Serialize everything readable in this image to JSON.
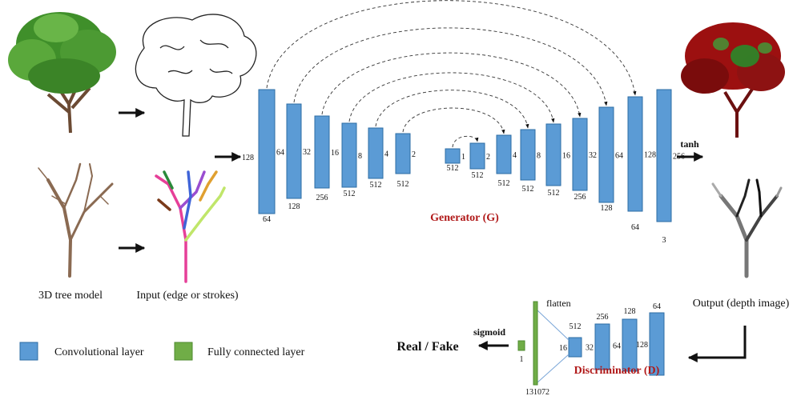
{
  "labels": {
    "tree_model": "3D tree model",
    "input": "Input (edge or strokes)",
    "output": "Output (depth image)",
    "generator": "Generator (G)",
    "discriminator": "Discriminator (D)",
    "tanh": "tanh",
    "sigmoid": "sigmoid",
    "real_fake": "Real / Fake",
    "flatten": "flatten"
  },
  "legend": {
    "conv": "Convolutional layer",
    "fc": "Fully connected layer"
  },
  "colors": {
    "conv_fill": "#5b9bd5",
    "conv_stroke": "#2e6da4",
    "fc_fill": "#70ad47",
    "fc_stroke": "#4e8a2f",
    "title_red": "#b01818",
    "foliage_green": "#3f8f2a",
    "bark": "#6b4a33",
    "output_red": "#9c1010"
  },
  "generator": {
    "input_size": "128",
    "layers": [
      {
        "side": "64",
        "channels": "64"
      },
      {
        "side": "32",
        "channels": "128"
      },
      {
        "side": "16",
        "channels": "256"
      },
      {
        "side": "8",
        "channels": "512"
      },
      {
        "side": "4",
        "channels": "512"
      },
      {
        "side": "2",
        "channels": "512"
      },
      {
        "side": "1",
        "channels": "512"
      },
      {
        "side": "2",
        "channels": "512"
      },
      {
        "side": "4",
        "channels": "512"
      },
      {
        "side": "8",
        "channels": "512"
      },
      {
        "side": "16",
        "channels": "512"
      },
      {
        "side": "32",
        "channels": "256"
      },
      {
        "side": "64",
        "channels": "128"
      },
      {
        "side": "128",
        "channels": "64"
      },
      {
        "side": "256",
        "channels": "3"
      }
    ]
  },
  "discriminator": {
    "layers": [
      {
        "side": "16",
        "channels": "512"
      },
      {
        "side": "32",
        "channels": "256"
      },
      {
        "side": "64",
        "channels": "128"
      },
      {
        "side": "128",
        "channels": "64"
      }
    ],
    "flatten_size": "131072",
    "fc_size": "1"
  }
}
